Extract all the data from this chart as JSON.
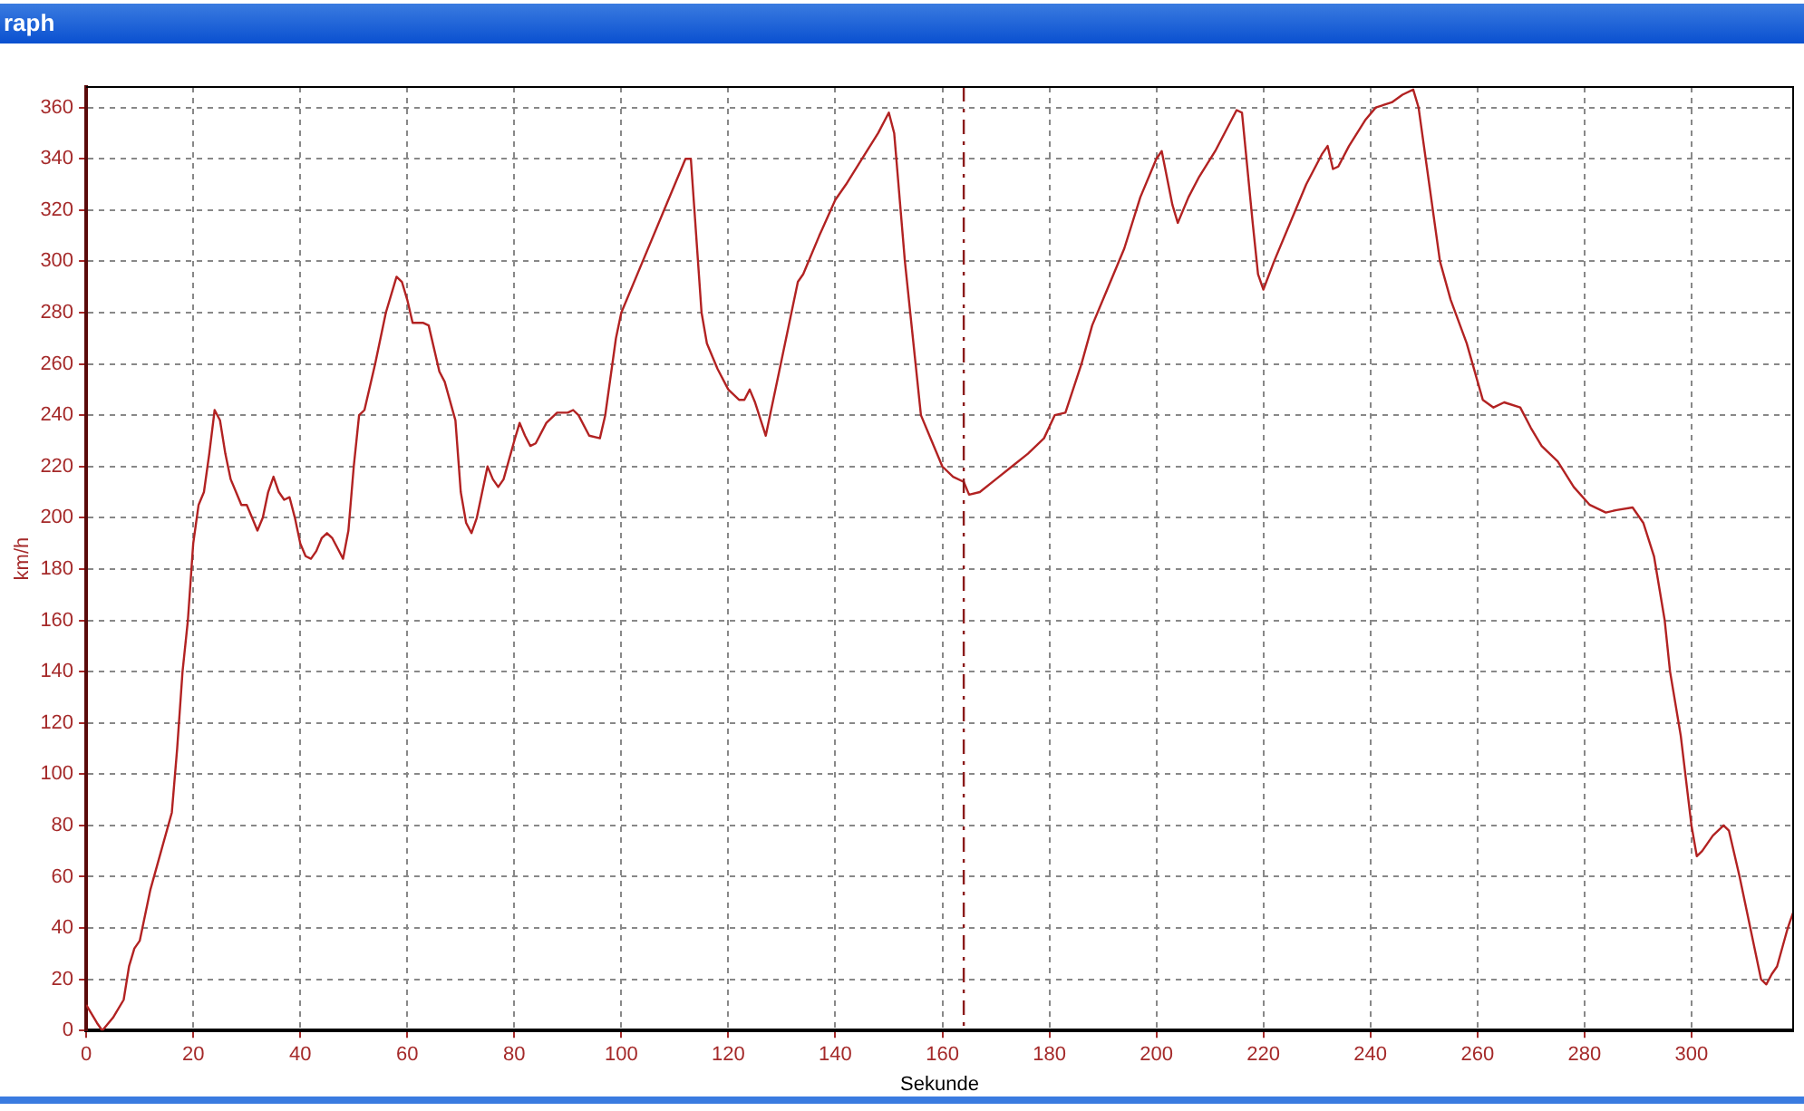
{
  "chart_data": {
    "type": "line",
    "title": "raph",
    "xlabel": "Sekunde",
    "ylabel": "km/h",
    "xlim": [
      0,
      319
    ],
    "ylim": [
      0,
      368
    ],
    "xticks": [
      0,
      20,
      40,
      60,
      80,
      100,
      120,
      140,
      160,
      180,
      200,
      220,
      240,
      260,
      280,
      300
    ],
    "yticks": [
      0,
      20,
      40,
      60,
      80,
      100,
      120,
      140,
      160,
      180,
      200,
      220,
      240,
      260,
      280,
      300,
      320,
      340,
      360
    ],
    "grid": true,
    "marker": "none",
    "line_style": "solid",
    "ref_lines": [
      {
        "axis": "x",
        "value": 164,
        "label": null,
        "color": "#8b1a1a",
        "line_style": "dashed"
      }
    ],
    "series": [
      {
        "color": "#b22222",
        "x": [
          0,
          2,
          3,
          5,
          7,
          8,
          9,
          10,
          12,
          14,
          16,
          17,
          18,
          19,
          20,
          21,
          22,
          23,
          24,
          25,
          26,
          27,
          28,
          29,
          30,
          31,
          32,
          33,
          34,
          35,
          36,
          37,
          38,
          39,
          40,
          41,
          42,
          43,
          44,
          45,
          46,
          47,
          48,
          49,
          50,
          51,
          52,
          54,
          56,
          58,
          59,
          60,
          61,
          63,
          64,
          66,
          67,
          69,
          70,
          71,
          72,
          73,
          75,
          76,
          77,
          78,
          80,
          81,
          82,
          83,
          84,
          86,
          88,
          90,
          91,
          92,
          94,
          96,
          97,
          99,
          100,
          104,
          108,
          112,
          113,
          115,
          116,
          118,
          120,
          122,
          123,
          124,
          125,
          127,
          130,
          133,
          134,
          137,
          140,
          142,
          145,
          148,
          150,
          151,
          153,
          155,
          156,
          158,
          160,
          162,
          164,
          165,
          167,
          170,
          173,
          176,
          179,
          181,
          183,
          186,
          188,
          191,
          194,
          197,
          200,
          201,
          203,
          204,
          206,
          208,
          211,
          214,
          215,
          216,
          218,
          219,
          220,
          222,
          225,
          228,
          231,
          232,
          233,
          234,
          236,
          239,
          241,
          244,
          246,
          248,
          249,
          251,
          253,
          255,
          258,
          261,
          263,
          265,
          268,
          270,
          272,
          275,
          278,
          281,
          284,
          286,
          289,
          291,
          293,
          295,
          296,
          298,
          300,
          301,
          302,
          304,
          306,
          307,
          309,
          310,
          312,
          313,
          314,
          315,
          316,
          318,
          319
        ],
        "values": [
          10,
          3,
          0,
          5,
          12,
          25,
          32,
          35,
          55,
          70,
          85,
          110,
          140,
          160,
          190,
          205,
          210,
          225,
          242,
          238,
          225,
          215,
          210,
          205,
          205,
          200,
          195,
          200,
          210,
          216,
          210,
          207,
          208,
          200,
          190,
          185,
          184,
          187,
          192,
          194,
          192,
          188,
          184,
          195,
          220,
          240,
          242,
          260,
          280,
          294,
          292,
          285,
          276,
          276,
          275,
          257,
          253,
          238,
          210,
          198,
          194,
          200,
          220,
          215,
          212,
          215,
          230,
          237,
          232,
          228,
          229,
          237,
          241,
          241,
          242,
          240,
          232,
          231,
          240,
          270,
          280,
          300,
          320,
          340,
          340,
          280,
          268,
          258,
          250,
          246,
          246,
          250,
          245,
          232,
          262,
          292,
          295,
          310,
          324,
          330,
          340,
          350,
          358,
          350,
          300,
          260,
          240,
          230,
          220,
          216,
          214,
          209,
          210,
          215,
          220,
          225,
          231,
          240,
          241,
          260,
          275,
          290,
          305,
          325,
          340,
          343,
          322,
          315,
          325,
          333,
          343,
          355,
          359,
          358,
          315,
          295,
          289,
          300,
          315,
          330,
          342,
          345,
          336,
          337,
          345,
          355,
          360,
          362,
          365,
          367,
          360,
          330,
          300,
          285,
          268,
          246,
          243,
          245,
          243,
          235,
          228,
          222,
          212,
          205,
          202,
          203,
          204,
          198,
          185,
          160,
          140,
          115,
          80,
          68,
          70,
          76,
          80,
          78,
          60,
          50,
          30,
          20,
          18,
          22,
          25,
          40,
          46
        ]
      }
    ]
  }
}
